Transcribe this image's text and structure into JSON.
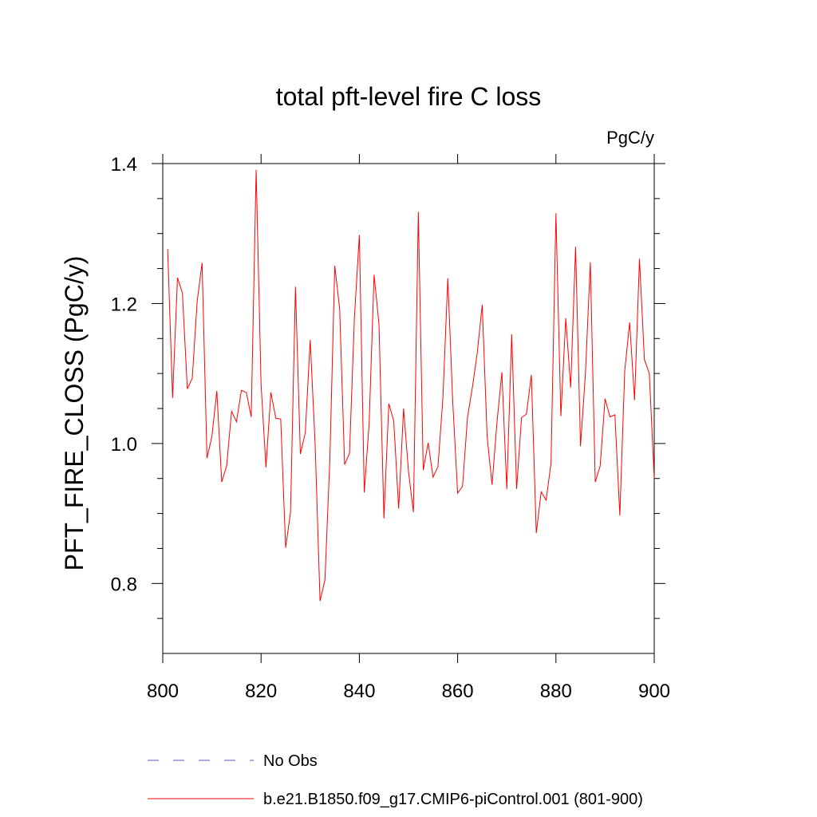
{
  "chart_data": {
    "type": "line",
    "title": "total pft-level fire C loss",
    "units": "PgC/y",
    "xlabel": "",
    "ylabel": "PFT_FIRE_CLOSS  (PgC/y)",
    "xlim": [
      800,
      900
    ],
    "ylim": [
      0.7,
      1.42
    ],
    "x_ticks": [
      800,
      820,
      840,
      860,
      880,
      900
    ],
    "x_tick_labels": [
      "800",
      "820",
      "840",
      "860",
      "880",
      "900"
    ],
    "y_ticks": [
      0.8,
      1.0,
      1.2,
      1.4
    ],
    "y_tick_labels": [
      "0.8",
      "1.0",
      "1.2",
      "1.4"
    ],
    "y_minor_ticks": [
      0.75,
      0.85,
      0.9,
      0.95,
      1.05,
      1.1,
      1.15,
      1.25,
      1.3,
      1.35
    ],
    "series": [
      {
        "name": "No Obs",
        "color": "#5b4fb0",
        "dash": "dashed",
        "x": [],
        "values": []
      },
      {
        "name": "b.e21.B1850.f09_g17.CMIP6-piControl.001 (801-900)",
        "color": "#ff0000",
        "dash": "solid",
        "x": [
          801,
          802,
          803,
          804,
          805,
          806,
          807,
          808,
          809,
          810,
          811,
          812,
          813,
          814,
          815,
          816,
          817,
          818,
          819,
          820,
          821,
          822,
          823,
          824,
          825,
          826,
          827,
          828,
          829,
          830,
          831,
          832,
          833,
          834,
          835,
          836,
          837,
          838,
          839,
          840,
          841,
          842,
          843,
          844,
          845,
          846,
          847,
          848,
          849,
          850,
          851,
          852,
          853,
          854,
          855,
          856,
          857,
          858,
          859,
          860,
          861,
          862,
          863,
          864,
          865,
          866,
          867,
          868,
          869,
          870,
          871,
          872,
          873,
          874,
          875,
          876,
          877,
          878,
          879,
          880,
          881,
          882,
          883,
          884,
          885,
          886,
          887,
          888,
          889,
          890,
          891,
          892,
          893,
          894,
          895,
          896,
          897,
          898,
          899,
          900
        ],
        "values": [
          1.278,
          1.065,
          1.237,
          1.215,
          1.078,
          1.093,
          1.203,
          1.258,
          0.979,
          1.01,
          1.075,
          0.945,
          0.968,
          1.046,
          1.031,
          1.076,
          1.073,
          1.038,
          1.391,
          1.085,
          0.966,
          1.073,
          1.036,
          1.035,
          0.851,
          0.902,
          1.224,
          0.985,
          1.015,
          1.148,
          1.0,
          0.775,
          0.805,
          0.977,
          1.254,
          1.192,
          0.97,
          0.986,
          1.18,
          1.298,
          0.93,
          1.03,
          1.241,
          1.17,
          0.893,
          1.057,
          1.032,
          0.907,
          1.05,
          0.96,
          0.902,
          1.331,
          0.962,
          1.001,
          0.952,
          0.967,
          1.065,
          1.236,
          1.06,
          0.929,
          0.939,
          1.037,
          1.08,
          1.13,
          1.198,
          1.01,
          0.941,
          1.03,
          1.102,
          0.935,
          1.156,
          0.935,
          1.037,
          1.042,
          1.098,
          0.872,
          0.931,
          0.919,
          0.972,
          1.329,
          1.039,
          1.179,
          1.08,
          1.281,
          0.996,
          1.1,
          1.259,
          0.945,
          0.968,
          1.064,
          1.038,
          1.041,
          0.897,
          1.104,
          1.173,
          1.062,
          1.264,
          1.12,
          1.1,
          0.95
        ]
      }
    ],
    "legend": {
      "placement": "bottom",
      "entries": [
        "No Obs",
        "b.e21.B1850.f09_g17.CMIP6-piControl.001 (801-900)"
      ]
    }
  }
}
